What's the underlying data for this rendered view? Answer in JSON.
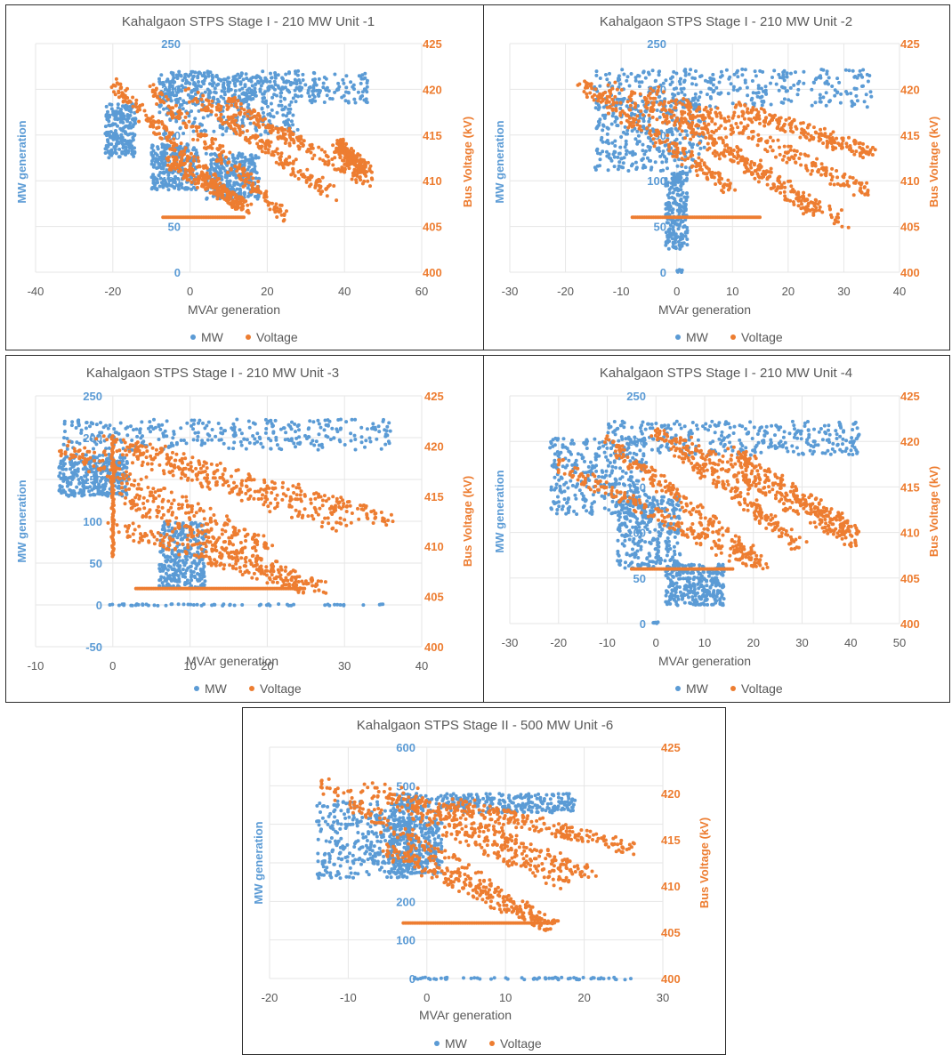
{
  "colors": {
    "mw": "#5b9bd5",
    "voltage": "#ed7d31",
    "axis_text": "#595959",
    "grid": "#e6e6e6",
    "frame": "#2b2b2b"
  },
  "legend": {
    "mw": "MW",
    "voltage": "Voltage"
  },
  "chart_data": [
    {
      "type": "scatter",
      "title": "Kahalgaon STPS Stage I - 210 MW Unit -1",
      "xlabel": "MVAr generation",
      "ylabel": "MW generation",
      "y2label": "Bus Voltage (kV)",
      "xlim": [
        -40,
        60
      ],
      "xticks": [
        -40,
        -20,
        0,
        20,
        40,
        60
      ],
      "ylim": [
        0,
        250
      ],
      "yticks": [
        0,
        50,
        100,
        150,
        200,
        250
      ],
      "y2lim": [
        400,
        425
      ],
      "y2ticks": [
        400,
        405,
        410,
        415,
        420,
        425
      ],
      "grid": true,
      "legend_position": "bottom",
      "series": [
        {
          "name": "MW",
          "axis": "left",
          "regions": [
            {
              "x": [
                -8,
                28
              ],
              "y": [
                150,
                220
              ]
            },
            {
              "x": [
                -8,
                46
              ],
              "y": [
                185,
                218
              ]
            },
            {
              "x": [
                -10,
                2
              ],
              "y": [
                90,
                140
              ]
            },
            {
              "x": [
                -22,
                -14
              ],
              "y": [
                125,
                185
              ]
            },
            {
              "x": [
                4,
                18
              ],
              "y": [
                80,
                130
              ]
            }
          ]
        },
        {
          "name": "Voltage",
          "axis": "right",
          "bands": [
            {
              "x1": -20,
              "y1": 420.5,
              "x2": 12,
              "y2": 407.5
            },
            {
              "x1": -10,
              "y1": 420,
              "x2": 25,
              "y2": 406
            },
            {
              "x1": 0,
              "y1": 419.5,
              "x2": 37,
              "y2": 408.5
            },
            {
              "x1": 10,
              "y1": 418.5,
              "x2": 46,
              "y2": 410
            },
            {
              "x1": -5,
              "y1": 412,
              "x2": 15,
              "y2": 407
            },
            {
              "x1": 38,
              "y1": 414,
              "x2": 46,
              "y2": 411
            }
          ],
          "hline": {
            "y": 406,
            "x": [
              -7,
              14
            ]
          }
        }
      ]
    },
    {
      "type": "scatter",
      "title": "Kahalgaon STPS Stage I - 210 MW Unit -2",
      "xlabel": "MVAr generation",
      "ylabel": "MW generation",
      "y2label": "Bus Voltage (kV)",
      "xlim": [
        -30,
        40
      ],
      "xticks": [
        -30,
        -20,
        -10,
        0,
        10,
        20,
        30,
        40
      ],
      "ylim": [
        0,
        250
      ],
      "yticks": [
        0,
        50,
        100,
        150,
        200,
        250
      ],
      "y2lim": [
        400,
        425
      ],
      "y2ticks": [
        400,
        405,
        410,
        415,
        420,
        425
      ],
      "grid": true,
      "legend_position": "bottom",
      "series": [
        {
          "name": "MW",
          "axis": "left",
          "regions": [
            {
              "x": [
                -15,
                35
              ],
              "y": [
                180,
                222
              ]
            },
            {
              "x": [
                -15,
                5
              ],
              "y": [
                110,
                190
              ]
            },
            {
              "x": [
                -2,
                2
              ],
              "y": [
                25,
                110
              ]
            },
            {
              "x": [
                0,
                1
              ],
              "y": [
                0,
                3
              ]
            }
          ]
        },
        {
          "name": "Voltage",
          "axis": "right",
          "bands": [
            {
              "x1": -17,
              "y1": 420.5,
              "x2": 10,
              "y2": 409
            },
            {
              "x1": -12,
              "y1": 420.5,
              "x2": 30,
              "y2": 405.5
            },
            {
              "x1": -5,
              "y1": 420,
              "x2": 25,
              "y2": 406.5
            },
            {
              "x1": 0,
              "y1": 419,
              "x2": 35,
              "y2": 408.5
            },
            {
              "x1": 10,
              "y1": 418,
              "x2": 35,
              "y2": 413
            }
          ],
          "hline": {
            "y": 406,
            "x": [
              -8,
              15
            ]
          }
        }
      ]
    },
    {
      "type": "scatter",
      "title": "Kahalgaon STPS Stage I - 210 MW Unit -3",
      "xlabel": "MVAr generation",
      "ylabel": "MW generation",
      "y2label": "Bus Voltage (kV)",
      "xlim": [
        -10,
        40
      ],
      "xticks": [
        -10,
        0,
        10,
        20,
        30,
        40
      ],
      "ylim": [
        -50,
        250
      ],
      "yticks": [
        -50,
        0,
        50,
        100,
        150,
        200,
        250
      ],
      "y2lim": [
        400,
        425
      ],
      "y2ticks": [
        400,
        405,
        410,
        415,
        420,
        425
      ],
      "grid": true,
      "legend_position": "bottom",
      "series": [
        {
          "name": "MW",
          "axis": "left",
          "regions": [
            {
              "x": [
                -7,
                36
              ],
              "y": [
                185,
                222
              ]
            },
            {
              "x": [
                -7,
                2
              ],
              "y": [
                130,
                180
              ]
            },
            {
              "x": [
                6,
                12
              ],
              "y": [
                20,
                100
              ]
            },
            {
              "x": [
                -1,
                35
              ],
              "y": [
                -1,
                1
              ]
            }
          ]
        },
        {
          "name": "Voltage",
          "axis": "right",
          "bands": [
            {
              "x1": -7,
              "y1": 420,
              "x2": 20,
              "y2": 410
            },
            {
              "x1": -2,
              "y1": 420.5,
              "x2": 30,
              "y2": 412
            },
            {
              "x1": 2,
              "y1": 420,
              "x2": 36,
              "y2": 412.5
            },
            {
              "x1": 0,
              "y1": 412,
              "x2": 28,
              "y2": 405.5
            },
            {
              "x1": 1,
              "y1": 415,
              "x2": 25,
              "y2": 406
            }
          ],
          "vline": {
            "x": 0,
            "y": [
              409,
              421
            ]
          },
          "hline": {
            "y": 405.8,
            "x": [
              3,
              25
            ]
          }
        }
      ]
    },
    {
      "type": "scatter",
      "title": "Kahalgaon STPS Stage I - 210 MW Unit -4",
      "xlabel": "MVAr generation",
      "ylabel": "MW generation",
      "y2label": "Bus Voltage (kV)",
      "xlim": [
        -30,
        50
      ],
      "xticks": [
        -30,
        -20,
        -10,
        0,
        10,
        20,
        30,
        40,
        50
      ],
      "ylim": [
        0,
        250
      ],
      "yticks": [
        0,
        50,
        100,
        150,
        200,
        250
      ],
      "y2lim": [
        400,
        425
      ],
      "y2ticks": [
        400,
        405,
        410,
        415,
        420,
        425
      ],
      "grid": true,
      "legend_position": "bottom",
      "series": [
        {
          "name": "MW",
          "axis": "left",
          "regions": [
            {
              "x": [
                -10,
                42
              ],
              "y": [
                185,
                222
              ]
            },
            {
              "x": [
                -22,
                -2
              ],
              "y": [
                120,
                205
              ]
            },
            {
              "x": [
                -8,
                5
              ],
              "y": [
                60,
                140
              ]
            },
            {
              "x": [
                2,
                14
              ],
              "y": [
                20,
                65
              ]
            },
            {
              "x": [
                -1,
                1
              ],
              "y": [
                0,
                2
              ]
            }
          ]
        },
        {
          "name": "Voltage",
          "axis": "right",
          "bands": [
            {
              "x1": -20,
              "y1": 417.5,
              "x2": 22,
              "y2": 406
            },
            {
              "x1": -10,
              "y1": 420,
              "x2": 22,
              "y2": 406.5
            },
            {
              "x1": 0,
              "y1": 421,
              "x2": 30,
              "y2": 408.5
            },
            {
              "x1": 5,
              "y1": 420,
              "x2": 41,
              "y2": 409
            },
            {
              "x1": 15,
              "y1": 419,
              "x2": 41,
              "y2": 410
            }
          ],
          "hline": {
            "y": 406,
            "x": [
              -5,
              16
            ]
          }
        }
      ]
    },
    {
      "type": "scatter",
      "title": "Kahalgaon STPS Stage II - 500 MW Unit -6",
      "xlabel": "MVAr generation",
      "ylabel": "MW generation",
      "y2label": "Bus Voltage (kV)",
      "xlim": [
        -20,
        30
      ],
      "xticks": [
        -20,
        -10,
        0,
        10,
        20,
        30
      ],
      "ylim": [
        0,
        600
      ],
      "yticks": [
        0,
        100,
        200,
        300,
        400,
        500,
        600
      ],
      "y2lim": [
        400,
        425
      ],
      "y2ticks": [
        400,
        405,
        410,
        415,
        420,
        425
      ],
      "grid": true,
      "legend_position": "bottom",
      "series": [
        {
          "name": "MW",
          "axis": "left",
          "regions": [
            {
              "x": [
                -4,
                19
              ],
              "y": [
                430,
                480
              ]
            },
            {
              "x": [
                -14,
                -2
              ],
              "y": [
                260,
                460
              ]
            },
            {
              "x": [
                -5,
                2
              ],
              "y": [
                270,
                420
              ]
            },
            {
              "x": [
                -2,
                26
              ],
              "y": [
                -3,
                3
              ]
            }
          ]
        },
        {
          "name": "Voltage",
          "axis": "right",
          "bands": [
            {
              "x1": -14,
              "y1": 421.5,
              "x2": 16,
              "y2": 405.5
            },
            {
              "x1": -8,
              "y1": 421,
              "x2": 18,
              "y2": 410
            },
            {
              "x1": -3,
              "y1": 420,
              "x2": 21,
              "y2": 411
            },
            {
              "x1": 3,
              "y1": 419,
              "x2": 26,
              "y2": 414
            },
            {
              "x1": -5,
              "y1": 414,
              "x2": 16,
              "y2": 405.5
            }
          ],
          "hline": {
            "y": 406,
            "x": [
              -3,
              16
            ]
          }
        }
      ]
    }
  ]
}
